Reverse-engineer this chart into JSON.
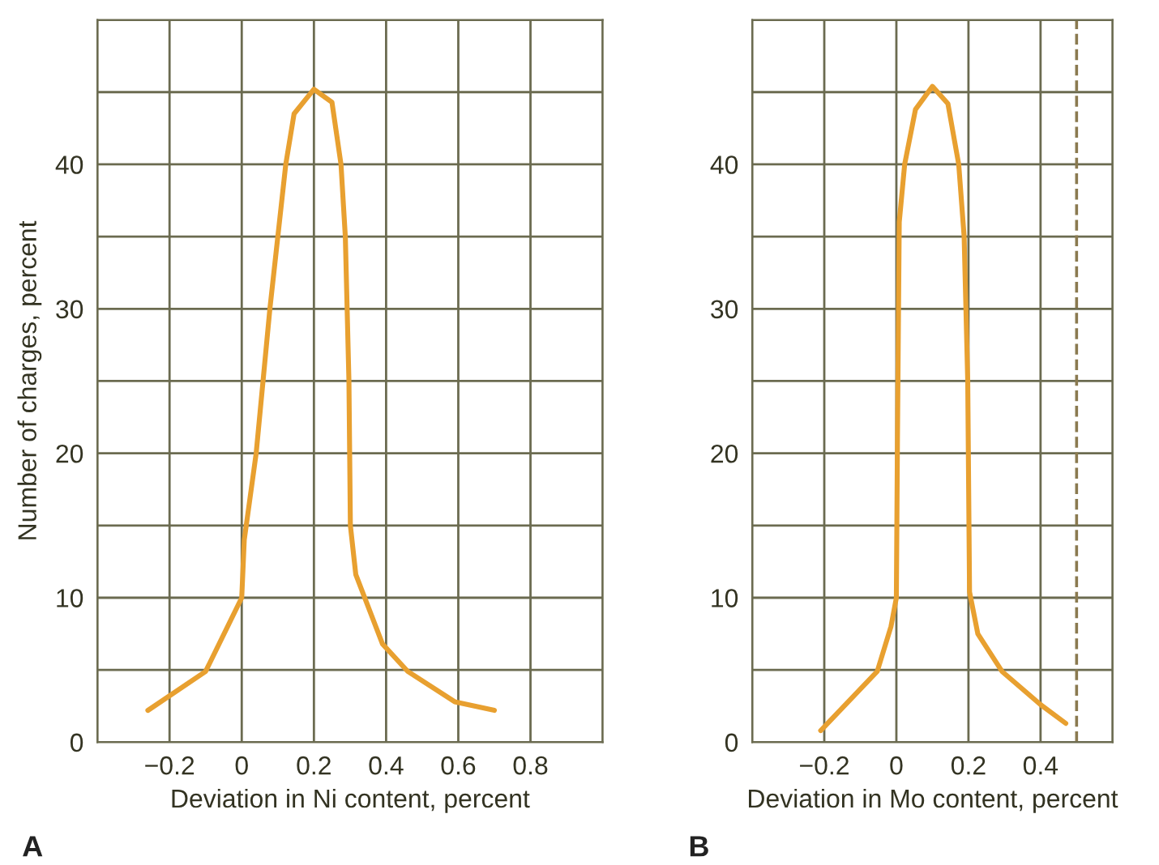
{
  "chart_data": [
    {
      "type": "line",
      "xlabel": "Deviation in Ni content, percent",
      "ylabel": "Number of charges, percent",
      "annotations": [
        "A"
      ],
      "x": [
        -0.26,
        -0.1,
        0,
        0.007,
        0.04,
        0.078,
        0.1,
        0.122,
        0.145,
        0.2,
        0.25,
        0.275,
        0.287,
        0.297,
        0.301,
        0.316,
        0.39,
        0.46,
        0.59,
        0.7
      ],
      "values": [
        2.2,
        4.9,
        10,
        14,
        20,
        30,
        35,
        40,
        43.5,
        45.2,
        44.3,
        40,
        35,
        25,
        15,
        11.6,
        6.8,
        4.9,
        2.8,
        2.2
      ],
      "color": "#e8a030",
      "xlim": [
        -0.4,
        1.0
      ],
      "ylim": [
        0,
        50
      ],
      "xticks": [
        {
          "value": -0.4,
          "label": null
        },
        {
          "value": -0.2,
          "label": "−0.2"
        },
        0,
        0.2,
        0.4,
        0.6,
        0.8,
        {
          "value": 1.0,
          "label": null
        }
      ],
      "yticks": [
        0,
        {
          "value": 5,
          "label": null
        },
        10,
        {
          "value": 15,
          "label": null
        },
        20,
        {
          "value": 25,
          "label": null
        },
        30,
        {
          "value": 35,
          "label": null
        },
        40,
        {
          "value": 45,
          "label": null
        },
        {
          "value": 50,
          "label": null
        }
      ],
      "grid": true,
      "marker": "none",
      "line_style": "solid"
    },
    {
      "type": "line",
      "xlabel": "Deviation in Mo content, percent",
      "annotations": [
        "B"
      ],
      "x": [
        -0.21,
        -0.053,
        -0.015,
        0,
        0.003,
        0.008,
        0.023,
        0.053,
        0.1,
        0.143,
        0.173,
        0.188,
        0.198,
        0.203,
        0.226,
        0.293,
        0.4,
        0.47
      ],
      "values": [
        0.8,
        4.9,
        8,
        10,
        21,
        36,
        40,
        43.8,
        45.4,
        44.2,
        40,
        35,
        25,
        10.4,
        7.5,
        4.9,
        2.6,
        1.3
      ],
      "color": "#e8a030",
      "xlim": [
        -0.4,
        0.6
      ],
      "ylim": [
        0,
        50
      ],
      "xticks": [
        {
          "value": -0.4,
          "label": null
        },
        {
          "value": -0.2,
          "label": "−0.2"
        },
        0,
        0.2,
        0.4,
        {
          "value": 0.6,
          "label": null
        }
      ],
      "yticks": [
        0,
        {
          "value": 5,
          "label": null
        },
        10,
        {
          "value": 15,
          "label": null
        },
        20,
        {
          "value": 25,
          "label": null
        },
        30,
        {
          "value": 35,
          "label": null
        },
        40,
        {
          "value": 45,
          "label": null
        },
        {
          "value": 50,
          "label": null
        }
      ],
      "ref_lines": [
        {
          "axis": "x",
          "value": 0.5,
          "color": "#8a7a50",
          "line_style": "dashed"
        }
      ],
      "grid": true,
      "marker": "none",
      "line_style": "solid"
    }
  ]
}
